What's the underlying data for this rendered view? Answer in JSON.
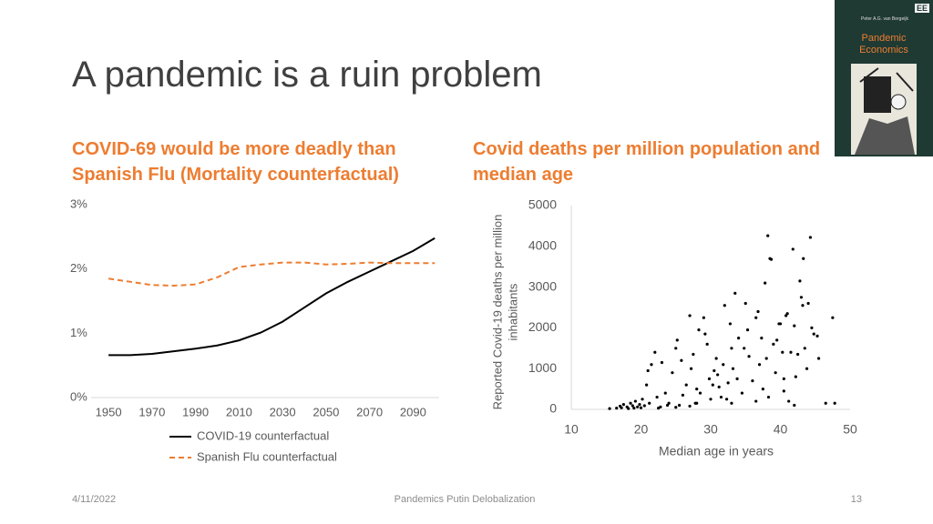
{
  "title": "A pandemic is a ruin problem",
  "book_cover": {
    "publisher": "EE",
    "author": "Peter A.G. van Bergeijk",
    "title": "Pandemic Economics"
  },
  "footer": {
    "date": "4/11/2022",
    "center": "Pandemics Putin Delobalization",
    "page": "13"
  },
  "chart_data": [
    {
      "type": "line",
      "title": "COVID-69 would be more deadly than Spanish Flu (Mortality counterfactual)",
      "x": [
        1950,
        1960,
        1970,
        1980,
        1990,
        2000,
        2010,
        2020,
        2030,
        2040,
        2050,
        2060,
        2070,
        2080,
        2090,
        2100
      ],
      "xlim": [
        1942,
        2102
      ],
      "xticks": [
        1950,
        1970,
        1990,
        2010,
        2030,
        2050,
        2070,
        2090
      ],
      "ylim": [
        0,
        3
      ],
      "yticks": [
        {
          "value": 0,
          "label": "0%"
        },
        {
          "value": 1,
          "label": "1%"
        },
        {
          "value": 2,
          "label": "2%"
        },
        {
          "value": 3,
          "label": "3%"
        }
      ],
      "grid": false,
      "legend": "bottom",
      "series": [
        {
          "name": "COVID-19 counterfactual",
          "color": "#000000",
          "line_style": "solid",
          "values": [
            0.66,
            0.66,
            0.68,
            0.72,
            0.76,
            0.81,
            0.89,
            1.01,
            1.18,
            1.4,
            1.62,
            1.8,
            1.96,
            2.12,
            2.28,
            2.48
          ]
        },
        {
          "name": "Spanish Flu counterfactual",
          "color": "#ED7D31",
          "line_style": "dashed",
          "values": [
            1.85,
            1.8,
            1.75,
            1.74,
            1.76,
            1.87,
            2.03,
            2.07,
            2.1,
            2.1,
            2.07,
            2.08,
            2.1,
            2.09,
            2.09,
            2.09
          ]
        }
      ]
    },
    {
      "type": "scatter",
      "title": "Covid deaths per million population and median age",
      "x_label": "Median age in years",
      "y_label": "Reported Covid-19 deaths per million inhabitants",
      "xlim": [
        10,
        50
      ],
      "xticks": [
        10,
        20,
        30,
        40,
        50
      ],
      "ylim": [
        0,
        5000
      ],
      "yticks": [
        0,
        1000,
        2000,
        3000,
        4000,
        5000
      ],
      "grid": false,
      "color": "#000000",
      "x": [
        15.5,
        16.5,
        17,
        17.2,
        17.5,
        18,
        18.2,
        18.5,
        18.8,
        19,
        19.2,
        19.5,
        19.8,
        20,
        20.2,
        20.5,
        20.8,
        21,
        21.2,
        21.5,
        22,
        22.3,
        22.5,
        22.8,
        23,
        23.5,
        23.8,
        24,
        24.5,
        25,
        25.2,
        25.5,
        25.8,
        26,
        26.5,
        27,
        27.2,
        27.5,
        27.8,
        28,
        28.3,
        28.5,
        29,
        29.2,
        29.5,
        29.8,
        30,
        30.3,
        30.5,
        30.8,
        31,
        31.2,
        31.5,
        31.8,
        32,
        32.3,
        32.5,
        32.8,
        33,
        33.2,
        33.5,
        33.8,
        34,
        34.5,
        34.8,
        35,
        35.3,
        35.5,
        36,
        36.5,
        36.8,
        37,
        37.3,
        37.5,
        37.8,
        38,
        38.3,
        38.5,
        38.7,
        39,
        39.3,
        39.5,
        39.8,
        40,
        40.3,
        40.5,
        40.8,
        41,
        41.2,
        41.5,
        41.8,
        42,
        42.2,
        42.5,
        42.8,
        43,
        43.2,
        43.5,
        43.8,
        44,
        44.3,
        44.8,
        45.3,
        45.5,
        46.5,
        47.5,
        47.8,
        44.5,
        43.3,
        40.5,
        42,
        33,
        27,
        28,
        25,
        36.5,
        38.2
      ],
      "values": [
        20,
        30,
        80,
        40,
        120,
        60,
        20,
        150,
        90,
        30,
        200,
        60,
        120,
        40,
        250,
        90,
        600,
        950,
        150,
        1100,
        1400,
        300,
        30,
        60,
        1150,
        400,
        100,
        150,
        900,
        1500,
        1700,
        100,
        1200,
        350,
        600,
        2300,
        1000,
        1350,
        150,
        500,
        1950,
        400,
        2250,
        1850,
        1600,
        750,
        250,
        600,
        950,
        1250,
        850,
        550,
        300,
        1100,
        2550,
        250,
        650,
        2100,
        1500,
        1000,
        2850,
        750,
        1750,
        400,
        1500,
        2600,
        1950,
        1300,
        700,
        2250,
        2400,
        1100,
        1750,
        500,
        3100,
        1250,
        300,
        3700,
        3680,
        1600,
        900,
        1700,
        2100,
        2100,
        1400,
        750,
        2300,
        2350,
        200,
        1400,
        3930,
        2050,
        800,
        1350,
        3150,
        2750,
        2550,
        1500,
        1000,
        2600,
        4220,
        1850,
        1800,
        1250,
        150,
        2250,
        150,
        2000,
        3700,
        450,
        100,
        150,
        80,
        150,
        50,
        200,
        4260
      ]
    }
  ]
}
